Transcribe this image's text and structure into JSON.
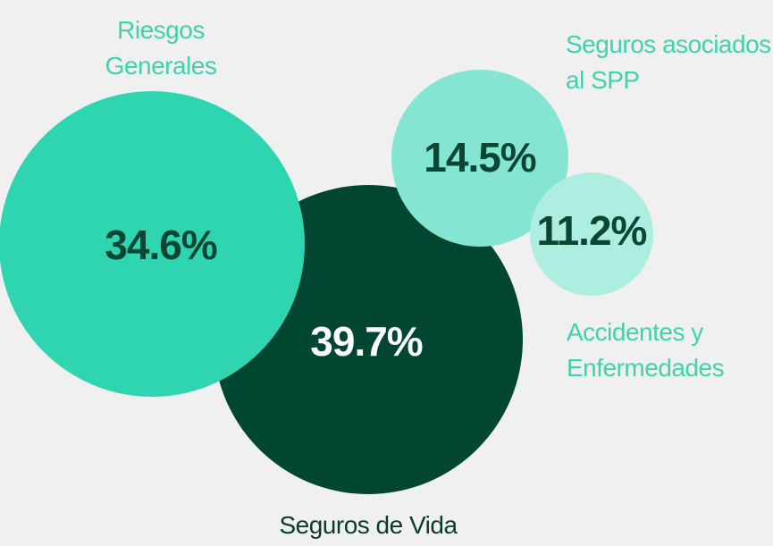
{
  "chart_data": {
    "type": "bubble",
    "categories": [
      "Riesgos Generales",
      "Seguros de Vida",
      "Seguros asociados al SPP",
      "Accidentes y Enfermedades"
    ],
    "values": [
      34.6,
      39.7,
      14.5,
      11.2
    ],
    "value_labels": [
      "34.6%",
      "39.7%",
      "14.5%",
      "11.2%"
    ],
    "colors": [
      "#2fd5b0",
      "#004631",
      "#84e6d2",
      "#aeeee1"
    ]
  }
}
